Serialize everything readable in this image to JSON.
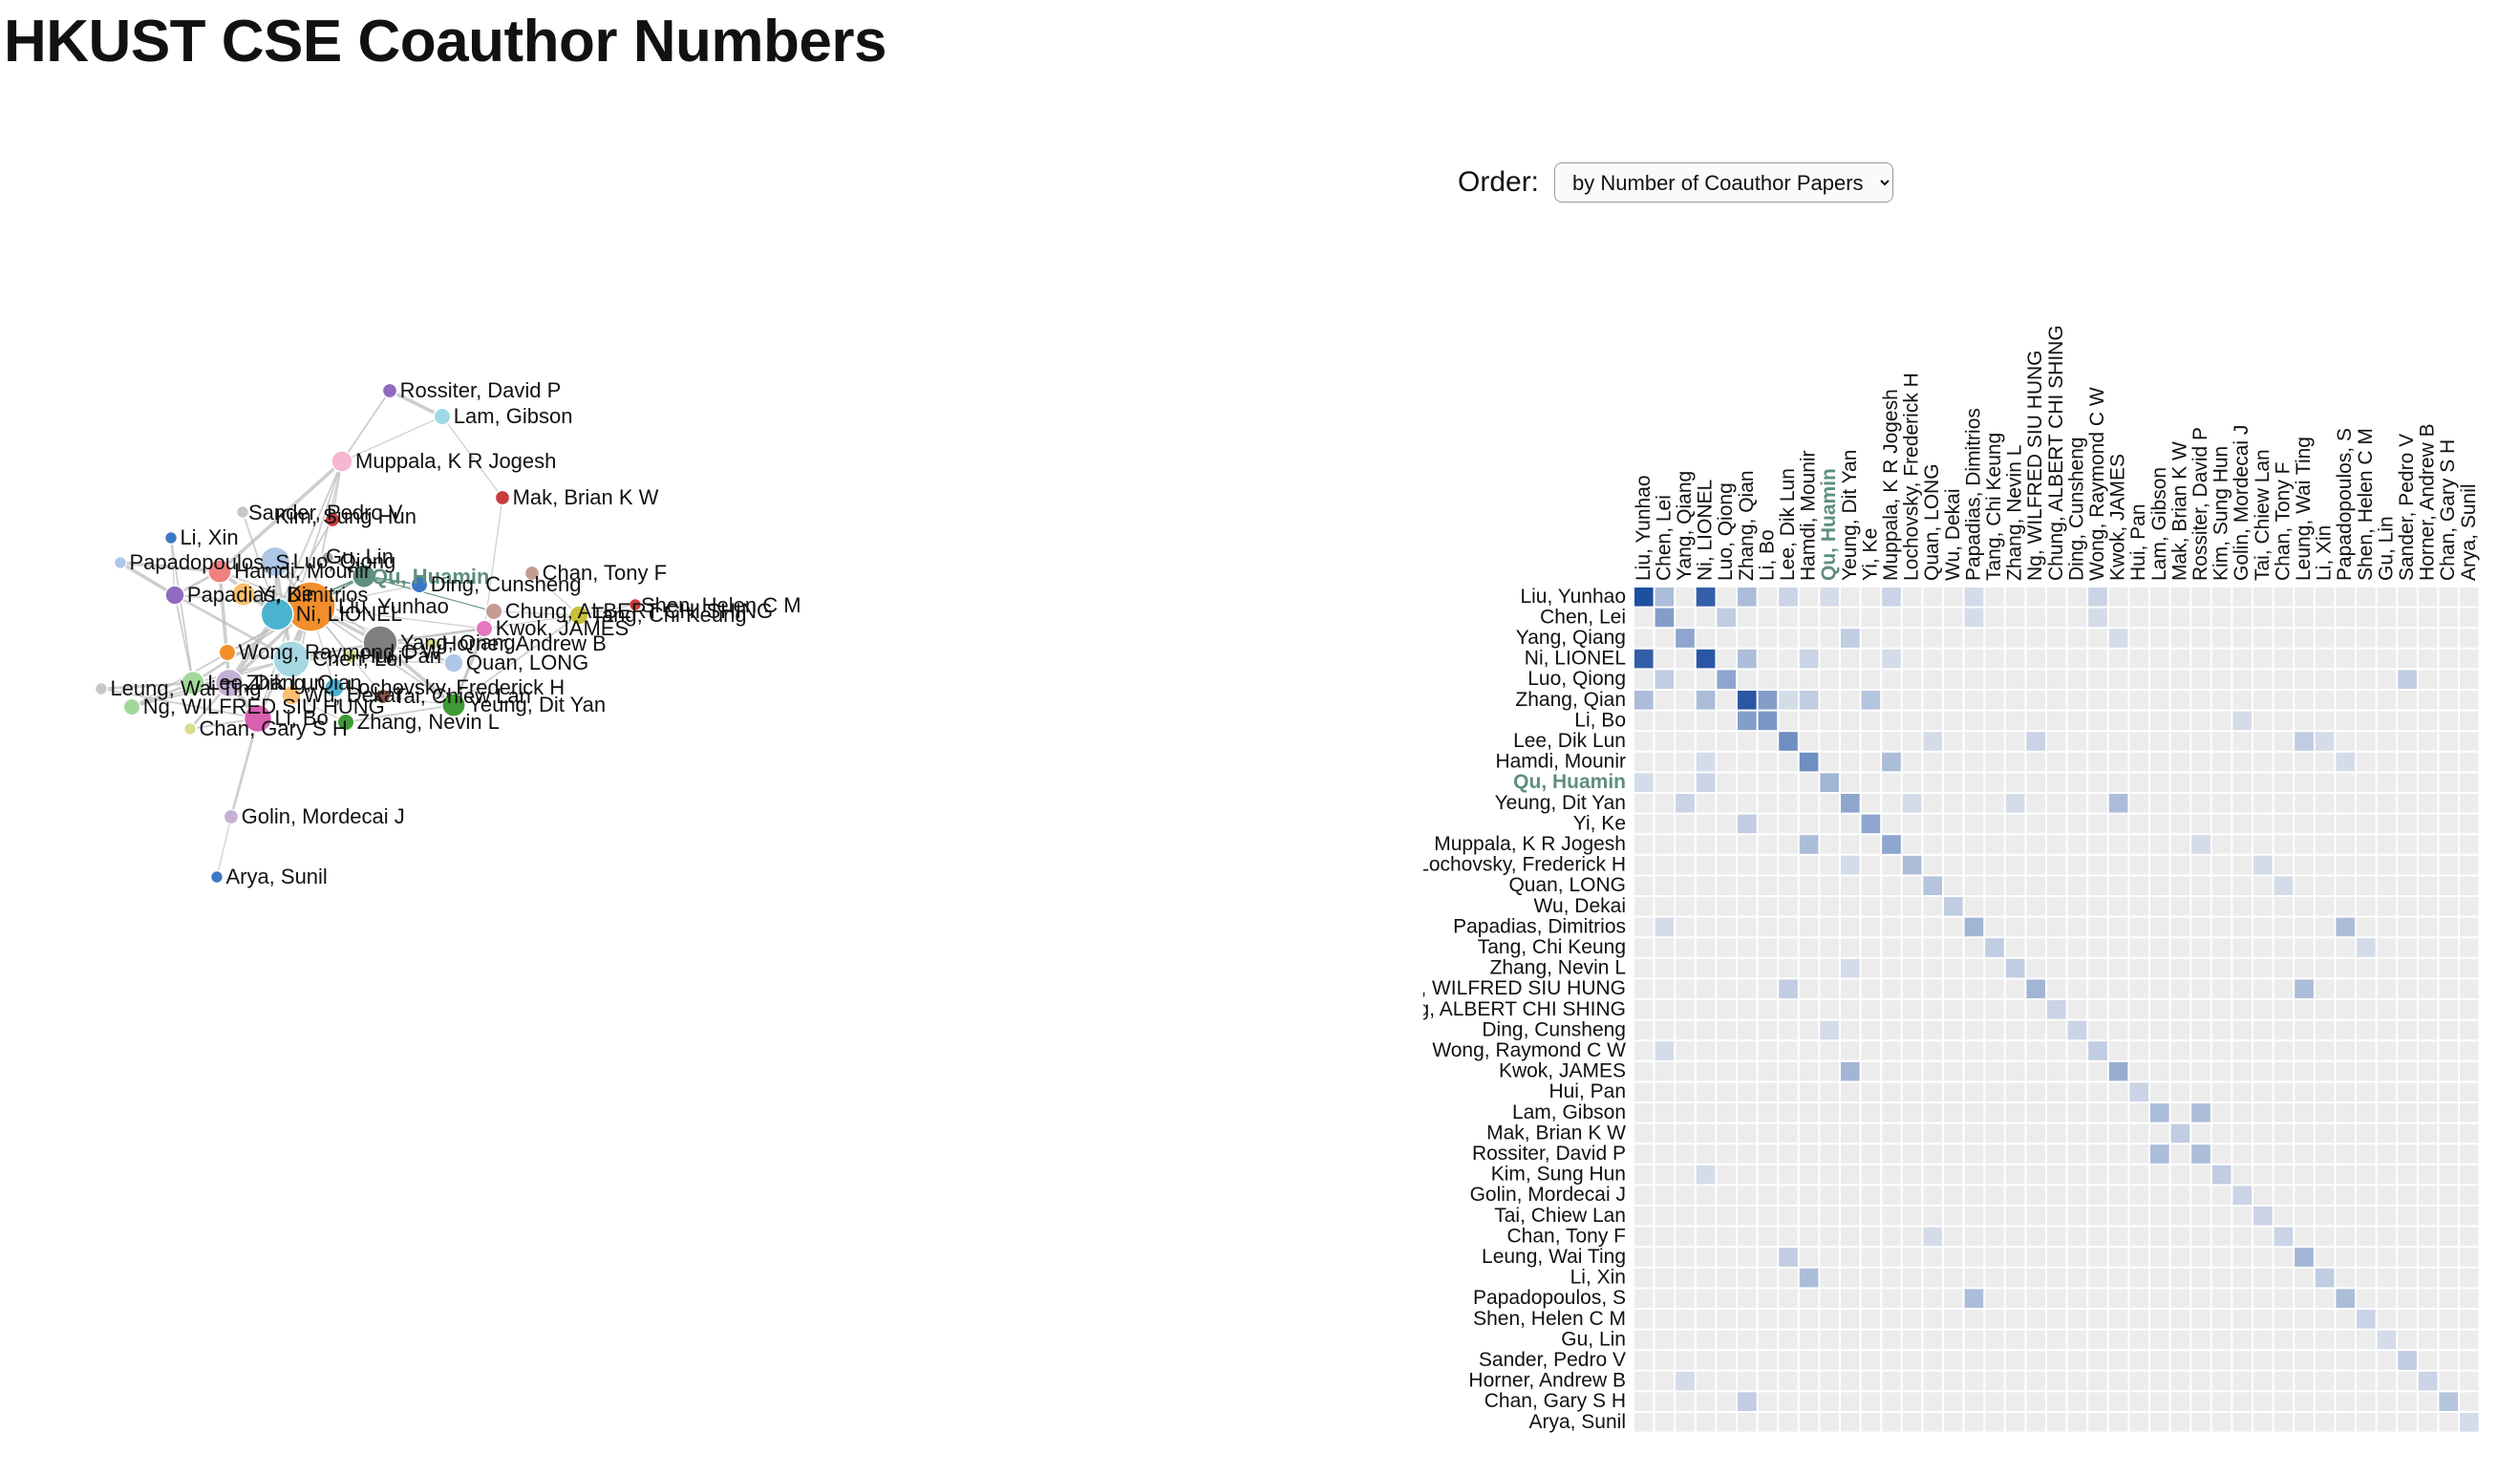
{
  "page": {
    "title": "HKUST CSE Coauthor Numbers",
    "order_label": "Order:",
    "order_selected": "by Number of Coauthor Papers"
  },
  "colors": {
    "highlight": "#5e8f7c",
    "edge": "#bdbdbd",
    "cell_empty": "#ececec",
    "cell_max": "#1f4fa0"
  },
  "focus_author": "Qu, Huamin",
  "authors": [
    "Liu, Yunhao",
    "Chen, Lei",
    "Yang, Qiang",
    "Ni, LIONEL",
    "Luo, Qiong",
    "Zhang, Qian",
    "Li, Bo",
    "Lee, Dik Lun",
    "Hamdi, Mounir",
    "Qu, Huamin",
    "Yeung, Dit Yan",
    "Yi, Ke",
    "Muppala, K R Jogesh",
    "Lochovsky, Frederick H",
    "Quan, LONG",
    "Wu, Dekai",
    "Papadias, Dimitrios",
    "Tang, Chi Keung",
    "Zhang, Nevin L",
    "Ng, WILFRED SIU HUNG",
    "Chung, ALBERT CHI SHING",
    "Ding, Cunsheng",
    "Wong, Raymond C W",
    "Kwok, JAMES",
    "Hui, Pan",
    "Lam, Gibson",
    "Mak, Brian K W",
    "Rossiter, David P",
    "Kim, Sung Hun",
    "Golin, Mordecai J",
    "Tai, Chiew Lan",
    "Chan, Tony F",
    "Leung, Wai Ting",
    "Li, Xin",
    "Papadopoulos, S",
    "Shen, Helen C M",
    "Gu, Lin",
    "Sander, Pedro V",
    "Horner, Andrew B",
    "Chan, Gary S H",
    "Arya, Sunil"
  ],
  "graph_nodes": [
    {
      "name": "Liu, Yunhao",
      "size": 20,
      "color": "#f28e2b"
    },
    {
      "name": "Chen, Lei",
      "size": 14,
      "color": "#a6d8e3"
    },
    {
      "name": "Yang, Qiang",
      "size": 13,
      "color": "#7f7f7f"
    },
    {
      "name": "Ni, LIONEL",
      "size": 12,
      "color": "#4bb3cf"
    },
    {
      "name": "Luo, Qiong",
      "size": 11,
      "color": "#aec7e8"
    },
    {
      "name": "Zhang, Qian",
      "size": 10,
      "color": "#c5b0d5"
    },
    {
      "name": "Li, Bo",
      "size": 10,
      "color": "#d95fb1"
    },
    {
      "name": "Lee, Dik Lun",
      "size": 8,
      "color": "#a1d99b"
    },
    {
      "name": "Hamdi, Mounir",
      "size": 8,
      "color": "#f08080"
    },
    {
      "name": "Qu, Huamin",
      "size": 8,
      "color": "#5e8f7c"
    },
    {
      "name": "Yeung, Dit Yan",
      "size": 8,
      "color": "#3e9a35"
    },
    {
      "name": "Yi, Ke",
      "size": 8,
      "color": "#fdbf6f"
    },
    {
      "name": "Muppala, K R Jogesh",
      "size": 7,
      "color": "#f7b6d2"
    },
    {
      "name": "Lochovsky, Frederick H",
      "size": 6,
      "color": "#4ab0cf"
    },
    {
      "name": "Quan, LONG",
      "size": 6,
      "color": "#aec7e8"
    },
    {
      "name": "Wu, Dekai",
      "size": 6,
      "color": "#fdbf6f"
    },
    {
      "name": "Papadias, Dimitrios",
      "size": 6,
      "color": "#8e6bbf"
    },
    {
      "name": "Tang, Chi Keung",
      "size": 6,
      "color": "#c7c13a"
    },
    {
      "name": "Zhang, Nevin L",
      "size": 5,
      "color": "#3e9a35"
    },
    {
      "name": "Ng, WILFRED SIU HUNG",
      "size": 5,
      "color": "#a1d99b"
    },
    {
      "name": "Chung, ALBERT CHI SHING",
      "size": 5,
      "color": "#c49c94"
    },
    {
      "name": "Ding, Cunsheng",
      "size": 5,
      "color": "#3b78c4"
    },
    {
      "name": "Wong, Raymond C W",
      "size": 5,
      "color": "#f28e2b"
    },
    {
      "name": "Kwok, JAMES",
      "size": 5,
      "color": "#e377c2"
    },
    {
      "name": "Hui, Pan",
      "size": 4,
      "color": "#dbdb8d"
    },
    {
      "name": "Lam, Gibson",
      "size": 5,
      "color": "#9edae5"
    },
    {
      "name": "Mak, Brian K W",
      "size": 4,
      "color": "#c93c3c"
    },
    {
      "name": "Rossiter, David P",
      "size": 4,
      "color": "#8e6bbf"
    },
    {
      "name": "Kim, Sung Hun",
      "size": 4,
      "color": "#c93c3c"
    },
    {
      "name": "Golin, Mordecai J",
      "size": 4,
      "color": "#c5b0d5"
    },
    {
      "name": "Tai, Chiew Lan",
      "size": 4,
      "color": "#8c564b"
    },
    {
      "name": "Chan, Tony F",
      "size": 4,
      "color": "#c49c94"
    },
    {
      "name": "Leung, Wai Ting",
      "size": 3,
      "color": "#c7c7c7"
    },
    {
      "name": "Li, Xin",
      "size": 3,
      "color": "#3b78c4"
    },
    {
      "name": "Papadopoulos, S",
      "size": 3,
      "color": "#aec7e8"
    },
    {
      "name": "Shen, Helen C M",
      "size": 3,
      "color": "#c93c3c"
    },
    {
      "name": "Gu, Lin",
      "size": 3,
      "color": "#aaaaaa"
    },
    {
      "name": "Sander, Pedro V",
      "size": 3,
      "color": "#c7c7c7"
    },
    {
      "name": "Horner, Andrew B",
      "size": 3,
      "color": "#dbdb8d"
    },
    {
      "name": "Chan, Gary S H",
      "size": 3,
      "color": "#dbdb8d"
    },
    {
      "name": "Arya, Sunil",
      "size": 3,
      "color": "#3b78c4"
    }
  ],
  "graph_edges": [
    [
      0,
      1,
      5
    ],
    [
      0,
      3,
      9
    ],
    [
      0,
      2,
      4
    ],
    [
      0,
      4,
      3
    ],
    [
      0,
      5,
      4
    ],
    [
      0,
      9,
      2
    ],
    [
      0,
      7,
      3
    ],
    [
      0,
      8,
      2
    ],
    [
      0,
      11,
      2
    ],
    [
      0,
      12,
      2
    ],
    [
      0,
      16,
      2
    ],
    [
      0,
      22,
      2
    ],
    [
      0,
      15,
      2
    ],
    [
      0,
      24,
      2
    ],
    [
      0,
      13,
      1
    ],
    [
      0,
      14,
      1
    ],
    [
      0,
      21,
      1
    ],
    [
      0,
      23,
      1
    ],
    [
      0,
      6,
      3
    ],
    [
      0,
      10,
      2
    ],
    [
      0,
      19,
      2
    ],
    [
      0,
      30,
      1
    ],
    [
      1,
      2,
      3
    ],
    [
      1,
      4,
      4
    ],
    [
      1,
      16,
      3
    ],
    [
      1,
      22,
      3
    ],
    [
      1,
      19,
      2
    ],
    [
      1,
      7,
      2
    ],
    [
      1,
      14,
      1
    ],
    [
      1,
      24,
      1
    ],
    [
      2,
      10,
      4
    ],
    [
      2,
      23,
      3
    ],
    [
      2,
      14,
      2
    ],
    [
      2,
      24,
      1
    ],
    [
      2,
      4,
      2
    ],
    [
      2,
      38,
      1
    ],
    [
      3,
      4,
      3
    ],
    [
      3,
      5,
      6
    ],
    [
      3,
      8,
      4
    ],
    [
      3,
      9,
      2
    ],
    [
      3,
      12,
      2
    ],
    [
      3,
      28,
      2
    ],
    [
      3,
      11,
      2
    ],
    [
      3,
      37,
      2
    ],
    [
      5,
      6,
      6
    ],
    [
      5,
      7,
      3
    ],
    [
      5,
      8,
      4
    ],
    [
      5,
      39,
      3
    ],
    [
      5,
      19,
      2
    ],
    [
      6,
      29,
      3
    ],
    [
      6,
      12,
      2
    ],
    [
      6,
      39,
      2
    ],
    [
      6,
      32,
      2
    ],
    [
      7,
      19,
      3
    ],
    [
      7,
      32,
      3
    ],
    [
      7,
      33,
      2
    ],
    [
      7,
      16,
      2
    ],
    [
      8,
      12,
      4
    ],
    [
      8,
      34,
      4
    ],
    [
      8,
      16,
      3
    ],
    [
      9,
      21,
      2
    ],
    [
      9,
      20,
      1
    ],
    [
      9,
      36,
      1
    ],
    [
      10,
      23,
      3
    ],
    [
      10,
      18,
      2
    ],
    [
      10,
      17,
      2
    ],
    [
      10,
      20,
      2
    ],
    [
      10,
      30,
      1
    ],
    [
      12,
      27,
      2
    ],
    [
      12,
      25,
      1
    ],
    [
      16,
      34,
      4
    ],
    [
      16,
      33,
      1
    ],
    [
      17,
      35,
      1
    ],
    [
      17,
      20,
      1
    ],
    [
      17,
      31,
      1
    ],
    [
      25,
      27,
      4
    ],
    [
      25,
      26,
      1
    ],
    [
      26,
      23,
      1
    ],
    [
      29,
      40,
      1
    ],
    [
      13,
      30,
      1
    ],
    [
      15,
      18,
      1
    ],
    [
      12,
      28,
      1
    ],
    [
      2,
      17,
      1
    ]
  ],
  "cells": [
    [
      0,
      0,
      1
    ],
    [
      0,
      1,
      0.3
    ],
    [
      0,
      3,
      0.9
    ],
    [
      0,
      5,
      0.3
    ],
    [
      0,
      7,
      0.15
    ],
    [
      0,
      9,
      0.1
    ],
    [
      0,
      12,
      0.15
    ],
    [
      0,
      16,
      0.1
    ],
    [
      0,
      22,
      0.15
    ],
    [
      0,
      3,
      0.9
    ],
    [
      1,
      1,
      0.5
    ],
    [
      1,
      4,
      0.2
    ],
    [
      1,
      16,
      0.1
    ],
    [
      1,
      22,
      0.1
    ],
    [
      2,
      2,
      0.45
    ],
    [
      2,
      10,
      0.2
    ],
    [
      2,
      23,
      0.1
    ],
    [
      3,
      0,
      0.9
    ],
    [
      3,
      3,
      0.95
    ],
    [
      3,
      5,
      0.3
    ],
    [
      3,
      8,
      0.15
    ],
    [
      3,
      12,
      0.1
    ],
    [
      4,
      1,
      0.2
    ],
    [
      4,
      4,
      0.45
    ],
    [
      4,
      37,
      0.2
    ],
    [
      5,
      0,
      0.3
    ],
    [
      5,
      3,
      0.3
    ],
    [
      5,
      5,
      0.95
    ],
    [
      5,
      6,
      0.5
    ],
    [
      5,
      8,
      0.2
    ],
    [
      5,
      11,
      0.25
    ],
    [
      5,
      7,
      0.1
    ],
    [
      6,
      5,
      0.5
    ],
    [
      6,
      6,
      0.55
    ],
    [
      6,
      29,
      0.1
    ],
    [
      7,
      7,
      0.6
    ],
    [
      7,
      19,
      0.15
    ],
    [
      7,
      32,
      0.2
    ],
    [
      7,
      33,
      0.1
    ],
    [
      7,
      14,
      0.1
    ],
    [
      8,
      3,
      0.1
    ],
    [
      8,
      8,
      0.6
    ],
    [
      8,
      12,
      0.3
    ],
    [
      8,
      34,
      0.1
    ],
    [
      9,
      0,
      0.1
    ],
    [
      9,
      3,
      0.15
    ],
    [
      9,
      9,
      0.35
    ],
    [
      10,
      2,
      0.15
    ],
    [
      10,
      10,
      0.45
    ],
    [
      10,
      23,
      0.3
    ],
    [
      10,
      13,
      0.1
    ],
    [
      10,
      18,
      0.1
    ],
    [
      11,
      5,
      0.2
    ],
    [
      11,
      11,
      0.45
    ],
    [
      12,
      8,
      0.3
    ],
    [
      12,
      12,
      0.45
    ],
    [
      12,
      27,
      0.1
    ],
    [
      13,
      10,
      0.1
    ],
    [
      13,
      13,
      0.3
    ],
    [
      13,
      30,
      0.1
    ],
    [
      14,
      14,
      0.25
    ],
    [
      14,
      31,
      0.1
    ],
    [
      15,
      15,
      0.2
    ],
    [
      16,
      16,
      0.35
    ],
    [
      16,
      34,
      0.3
    ],
    [
      16,
      1,
      0.1
    ],
    [
      17,
      17,
      0.2
    ],
    [
      17,
      35,
      0.1
    ],
    [
      18,
      18,
      0.2
    ],
    [
      18,
      10,
      0.1
    ],
    [
      19,
      7,
      0.2
    ],
    [
      19,
      19,
      0.35
    ],
    [
      19,
      32,
      0.3
    ],
    [
      20,
      20,
      0.15
    ],
    [
      21,
      21,
      0.15
    ],
    [
      21,
      9,
      0.1
    ],
    [
      22,
      22,
      0.2
    ],
    [
      22,
      1,
      0.1
    ],
    [
      23,
      10,
      0.35
    ],
    [
      23,
      23,
      0.4
    ],
    [
      24,
      24,
      0.15
    ],
    [
      25,
      25,
      0.3
    ],
    [
      25,
      27,
      0.3
    ],
    [
      26,
      26,
      0.2
    ],
    [
      27,
      25,
      0.3
    ],
    [
      27,
      27,
      0.3
    ],
    [
      28,
      28,
      0.2
    ],
    [
      28,
      3,
      0.1
    ],
    [
      29,
      29,
      0.15
    ],
    [
      30,
      30,
      0.15
    ],
    [
      31,
      31,
      0.15
    ],
    [
      31,
      14,
      0.1
    ],
    [
      32,
      7,
      0.2
    ],
    [
      32,
      32,
      0.35
    ],
    [
      33,
      8,
      0.3
    ],
    [
      33,
      33,
      0.2
    ],
    [
      34,
      16,
      0.3
    ],
    [
      34,
      34,
      0.3
    ],
    [
      35,
      35,
      0.15
    ],
    [
      36,
      36,
      0.1
    ],
    [
      37,
      37,
      0.2
    ],
    [
      38,
      38,
      0.15
    ],
    [
      38,
      2,
      0.1
    ],
    [
      39,
      5,
      0.2
    ],
    [
      39,
      39,
      0.25
    ],
    [
      40,
      40,
      0.1
    ]
  ]
}
